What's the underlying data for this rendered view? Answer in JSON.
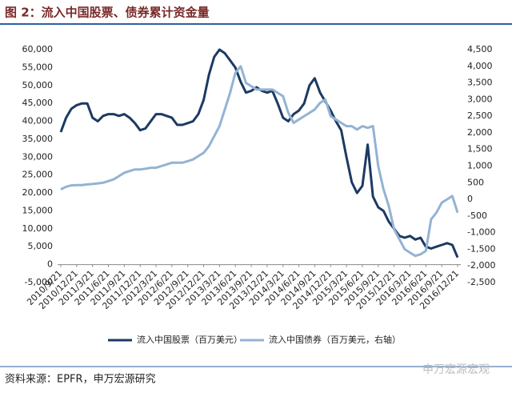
{
  "chart_data": {
    "type": "line",
    "title": "图 2：流入中国股票、债券累计资金量",
    "source": "资料来源：EPFR，申万宏源研究",
    "watermark": "申万宏源宏观",
    "categories": [
      "2010/9/21",
      null,
      null,
      "2010/12/21",
      null,
      null,
      "2011/3/21",
      null,
      null,
      "2011/6/21",
      null,
      null,
      "2011/9/21",
      null,
      null,
      "2011/12/21",
      null,
      null,
      "2012/3/21",
      null,
      null,
      "2012/6/21",
      null,
      null,
      "2012/9/21",
      null,
      null,
      "2012/12/21",
      null,
      null,
      "2013/3/21",
      null,
      null,
      "2013/6/21",
      null,
      null,
      "2013/9/21",
      null,
      null,
      "2013/12/21",
      null,
      null,
      "2014/3/21",
      null,
      null,
      "2014/6/21",
      null,
      null,
      "2014/9/21",
      null,
      null,
      "2014/12/21",
      null,
      null,
      "2015/3/21",
      null,
      null,
      "2015/6/21",
      null,
      null,
      "2015/9/21",
      null,
      null,
      "2015/12/21",
      null,
      null,
      "2016/3/21",
      null,
      null,
      "2016/6/21",
      null,
      null,
      "2016/9/21",
      null,
      null,
      "2016/12/21"
    ],
    "series": [
      {
        "name": "流入中国股票（百万美元）",
        "color": "#1c3a62",
        "values": [
          37000,
          41000,
          43500,
          44500,
          45000,
          45000,
          41000,
          40000,
          41500,
          42000,
          42000,
          41500,
          42000,
          41000,
          39500,
          37500,
          38000,
          40000,
          42000,
          42000,
          41500,
          41000,
          39000,
          39000,
          39500,
          40000,
          42000,
          46000,
          53000,
          58000,
          60000,
          59000,
          57000,
          55000,
          51000,
          48000,
          48500,
          49500,
          48500,
          48000,
          48500,
          45000,
          41000,
          40000,
          42000,
          43000,
          45000,
          50000,
          52000,
          48000,
          45500,
          43000,
          40000,
          37500,
          30000,
          23000,
          20000,
          22000,
          33500,
          19000,
          16000,
          15000,
          12000,
          10000,
          8000,
          7500,
          8000,
          7000,
          7500,
          5000,
          4500,
          5000,
          5500,
          6000,
          5500,
          2000
        ]
      },
      {
        "name": "流入中国债券（百万美元，右轴）",
        "color": "#93b3d3",
        "axis": "y2",
        "values": [
          300,
          380,
          420,
          430,
          430,
          450,
          460,
          480,
          500,
          550,
          600,
          700,
          800,
          850,
          900,
          900,
          920,
          950,
          950,
          1000,
          1050,
          1100,
          1100,
          1100,
          1150,
          1200,
          1300,
          1400,
          1600,
          1900,
          2200,
          2700,
          3200,
          3800,
          4000,
          3500,
          3400,
          3300,
          3300,
          3300,
          3300,
          3200,
          3100,
          2600,
          2300,
          2400,
          2500,
          2600,
          2700,
          2900,
          3000,
          2500,
          2400,
          2300,
          2200,
          2200,
          2100,
          2200,
          2150,
          2200,
          1000,
          300,
          -200,
          -900,
          -1200,
          -1500,
          -1600,
          -1700,
          -1650,
          -1550,
          -600,
          -400,
          -100,
          0,
          100,
          -400
        ]
      }
    ],
    "ylim": [
      -5000,
      60000
    ],
    "yticks": [
      {
        "value": -5000,
        "label": "-5,000"
      },
      0,
      {
        "value": 5000,
        "label": "5,000"
      },
      {
        "value": 10000,
        "label": "10,000"
      },
      {
        "value": 15000,
        "label": "15,000"
      },
      {
        "value": 20000,
        "label": "20,000"
      },
      {
        "value": 25000,
        "label": "25,000"
      },
      {
        "value": 30000,
        "label": "30,000"
      },
      {
        "value": 35000,
        "label": "35,000"
      },
      {
        "value": 40000,
        "label": "40,000"
      },
      {
        "value": 45000,
        "label": "45,000"
      },
      {
        "value": 50000,
        "label": "50,000"
      },
      {
        "value": 55000,
        "label": "55,000"
      },
      {
        "value": 60000,
        "label": "60,000"
      }
    ],
    "y2lim": [
      -2500,
      4500
    ],
    "y2ticks": [
      {
        "value": -2500,
        "label": "-2,500"
      },
      {
        "value": -2000,
        "label": "-2,000"
      },
      {
        "value": -1500,
        "label": "-1,500"
      },
      {
        "value": -1000,
        "label": "-1,000"
      },
      -500,
      0,
      500,
      {
        "value": 1000,
        "label": "1,000"
      },
      {
        "value": 1500,
        "label": "1,500"
      },
      {
        "value": 2000,
        "label": "2,000"
      },
      {
        "value": 2500,
        "label": "2,500"
      },
      {
        "value": 3000,
        "label": "3,000"
      },
      {
        "value": 3500,
        "label": "3,500"
      },
      {
        "value": 4000,
        "label": "4,000"
      },
      {
        "value": 4500,
        "label": "4,500"
      }
    ]
  }
}
